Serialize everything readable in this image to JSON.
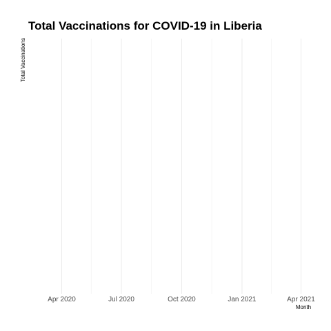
{
  "chart_data": {
    "type": "line",
    "title": "Total Vaccinations for COVID-19 in Liberia",
    "xlabel": "Month",
    "ylabel": "Total Vaccinations",
    "x_axis_type": "date",
    "xlim": [
      "2020-02-10",
      "2021-05-01"
    ],
    "x_ticks": [
      {
        "date": "2020-04-01",
        "label": "Apr 2020"
      },
      {
        "date": "2020-07-01",
        "label": "Jul 2020"
      },
      {
        "date": "2020-10-01",
        "label": "Oct 2020"
      },
      {
        "date": "2021-01-01",
        "label": "Jan 2021"
      },
      {
        "date": "2021-04-01",
        "label": "Apr 2021"
      }
    ],
    "x_minor_ticks": [
      "2020-05-16",
      "2020-08-16",
      "2020-11-16",
      "2021-02-15"
    ],
    "y_ticks": [],
    "series": [],
    "grid": true,
    "legend": "none"
  }
}
